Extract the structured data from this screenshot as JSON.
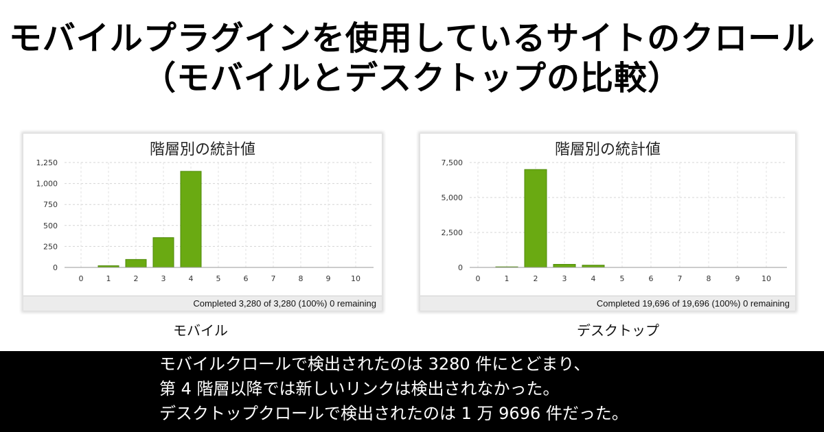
{
  "heading": {
    "line1": "モバイルプラグインを使用しているサイトのクロール",
    "line2": "（モバイルとデスクトップの比較）"
  },
  "chart_data": [
    {
      "type": "bar",
      "title": "階層別の統計値",
      "categories": [
        "0",
        "1",
        "2",
        "3",
        "4",
        "5",
        "6",
        "7",
        "8",
        "9",
        "10"
      ],
      "values": [
        0,
        20,
        95,
        355,
        1145,
        0,
        0,
        0,
        0,
        0,
        0
      ],
      "ylim": [
        0,
        1250
      ],
      "yticks": [
        0,
        250,
        500,
        750,
        1000,
        1250
      ],
      "ytick_labels": [
        "0",
        "250",
        "500",
        "750",
        "1,000",
        "1,250"
      ],
      "bar_color": "#6aaa12",
      "grid": true,
      "status": "Completed 3,280 of 3,280 (100%) 0 remaining",
      "caption": "モバイル"
    },
    {
      "type": "bar",
      "title": "階層別の統計値",
      "categories": [
        "0",
        "1",
        "2",
        "3",
        "4",
        "5",
        "6",
        "7",
        "8",
        "9",
        "10"
      ],
      "values": [
        0,
        40,
        7000,
        220,
        160,
        0,
        0,
        0,
        0,
        0,
        0
      ],
      "ylim": [
        0,
        7500
      ],
      "yticks": [
        0,
        2500,
        5000,
        7500
      ],
      "ytick_labels": [
        "0",
        "2,500",
        "5,000",
        "7,500"
      ],
      "bar_color": "#6aaa12",
      "grid": true,
      "status": "Completed 19,696 of 19,696 (100%) 0 remaining",
      "caption": "デスクトップ"
    }
  ],
  "summary": {
    "line1": "モバイルクロールで検出されたのは 3280 件にとどまり、",
    "line2": "第 4 階層以降では新しいリンクは検出されなかった。",
    "line3": "デスクトップクロールで検出されたのは 1 万 9696 件だった。"
  }
}
